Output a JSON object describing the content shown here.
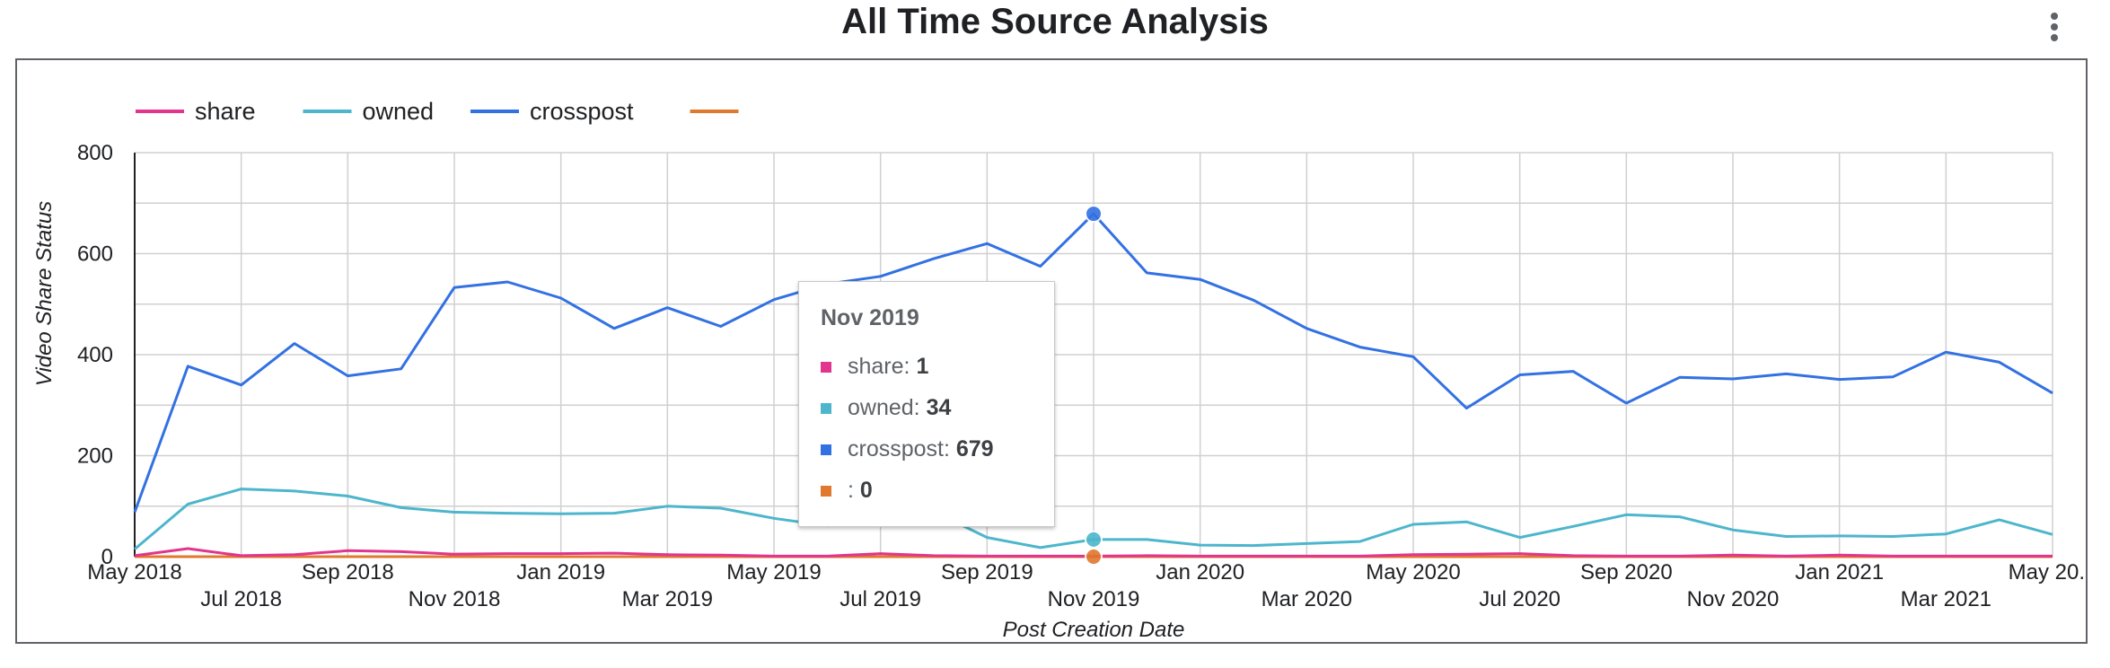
{
  "title": "All Time Source Analysis",
  "menu_icon": "more-vert-icon",
  "chart_data": {
    "type": "line",
    "xlabel": "Post Creation Date",
    "ylabel": "Video Share Status",
    "ylim": [
      0,
      800
    ],
    "yticks": [
      "0",
      "200",
      "400",
      "600",
      "800"
    ],
    "grid": true,
    "legend_position": "top-left",
    "x": [
      "May 2018",
      "Jun 2018",
      "Jul 2018",
      "Aug 2018",
      "Sep 2018",
      "Oct 2018",
      "Nov 2018",
      "Dec 2018",
      "Jan 2019",
      "Feb 2019",
      "Mar 2019",
      "Apr 2019",
      "May 2019",
      "Jun 2019",
      "Jul 2019",
      "Aug 2019",
      "Sep 2019",
      "Oct 2019",
      "Nov 2019",
      "Dec 2019",
      "Jan 2020",
      "Feb 2020",
      "Mar 2020",
      "Apr 2020",
      "May 2020",
      "Jun 2020",
      "Jul 2020",
      "Aug 2020",
      "Sep 2020",
      "Oct 2020",
      "Nov 2020",
      "Dec 2020",
      "Jan 2021",
      "Feb 2021",
      "Mar 2021",
      "Apr 2021",
      "May 2021"
    ],
    "xtick_labels": [
      "May 2018",
      "Jul 2018",
      "Sep 2018",
      "Nov 2018",
      "Jan 2019",
      "Mar 2019",
      "May 2019",
      "Jul 2019",
      "Sep 2019",
      "Nov 2019",
      "Jan 2020",
      "Mar 2020",
      "May 2020",
      "Jul 2020",
      "Sep 2020",
      "Nov 2020",
      "Jan 2021",
      "Mar 2021",
      "May 20..."
    ],
    "series": [
      {
        "name": "share",
        "color": "#e2358e",
        "values": [
          2,
          16,
          2,
          4,
          12,
          10,
          5,
          6,
          6,
          7,
          4,
          3,
          1,
          1,
          6,
          2,
          1,
          1,
          1,
          2,
          1,
          1,
          1,
          1,
          4,
          5,
          6,
          2,
          1,
          1,
          3,
          1,
          3,
          1,
          1,
          1,
          1
        ]
      },
      {
        "name": "owned",
        "color": "#4db6cc",
        "values": [
          15,
          104,
          134,
          130,
          120,
          97,
          88,
          86,
          85,
          86,
          100,
          96,
          76,
          61,
          84,
          89,
          38,
          18,
          34,
          34,
          23,
          22,
          26,
          30,
          64,
          69,
          38,
          60,
          83,
          79,
          53,
          40,
          41,
          40,
          45,
          73,
          44
        ]
      },
      {
        "name": "crosspost",
        "color": "#3371e3",
        "values": [
          88,
          377,
          340,
          422,
          358,
          372,
          533,
          544,
          512,
          452,
          493,
          456,
          509,
          540,
          555,
          590,
          620,
          575,
          679,
          562,
          549,
          508,
          452,
          415,
          396,
          294,
          360,
          367,
          304,
          355,
          352,
          362,
          351,
          356,
          405,
          385,
          324
        ]
      },
      {
        "name": "",
        "color": "#e0782e",
        "values": [
          0,
          0,
          0,
          0,
          0,
          0,
          0,
          0,
          0,
          0,
          0,
          0,
          0,
          0,
          0,
          0,
          0,
          0,
          0,
          0,
          0,
          0,
          0,
          0,
          0,
          0,
          0,
          0,
          0,
          0,
          0,
          0,
          0,
          0,
          0,
          0,
          0
        ]
      }
    ],
    "tooltip": {
      "title": "Nov 2019",
      "rows": [
        {
          "label": "share: ",
          "value": "1",
          "color": "#e2358e"
        },
        {
          "label": "owned: ",
          "value": "34",
          "color": "#4db6cc"
        },
        {
          "label": "crosspost: ",
          "value": "679",
          "color": "#3371e3"
        },
        {
          "label": ": ",
          "value": "0",
          "color": "#e0782e"
        }
      ]
    }
  }
}
